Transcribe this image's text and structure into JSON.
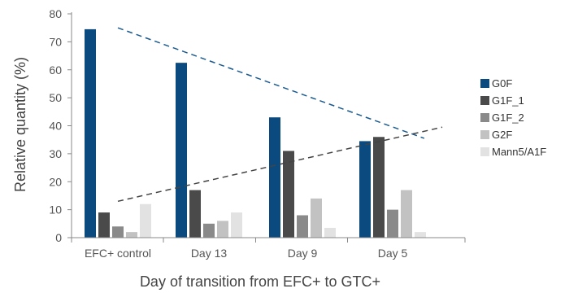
{
  "chart_data": {
    "type": "bar",
    "title": "",
    "xlabel": "Day of transition from EFC+ to GTC+",
    "ylabel": "Relative quantity (%)",
    "ylim": [
      0,
      80
    ],
    "yticks": [
      0,
      10,
      20,
      30,
      40,
      50,
      60,
      70,
      80
    ],
    "categories": [
      "EFC+ control",
      "Day 13",
      "Day 9",
      "Day 5"
    ],
    "series": [
      {
        "name": "G0F",
        "color": "#0b4a7f",
        "values": [
          74.5,
          62.5,
          43,
          34.5
        ]
      },
      {
        "name": "G1F_1",
        "color": "#4a4a4a",
        "values": [
          9,
          17,
          31,
          36
        ]
      },
      {
        "name": "G1F_2",
        "color": "#8a8a8a",
        "values": [
          4,
          5,
          8,
          10
        ]
      },
      {
        "name": "G2F",
        "color": "#c2c2c2",
        "values": [
          2,
          6,
          14,
          17
        ]
      },
      {
        "name": "Mann5/A1F",
        "color": "#e2e2e2",
        "values": [
          12,
          9,
          3.5,
          2
        ]
      }
    ],
    "trendlines": [
      {
        "series": "G0F",
        "color": "#1a5a90",
        "from": {
          "category": 0,
          "y": 75
        },
        "to": {
          "category": 3.35,
          "y": 35.5
        }
      },
      {
        "series": "G1F_1",
        "color": "#444444",
        "from": {
          "category": 0,
          "y": 13
        },
        "to": {
          "category": 3.55,
          "y": 39.5
        }
      }
    ],
    "legend_position": "right",
    "grid": false
  }
}
